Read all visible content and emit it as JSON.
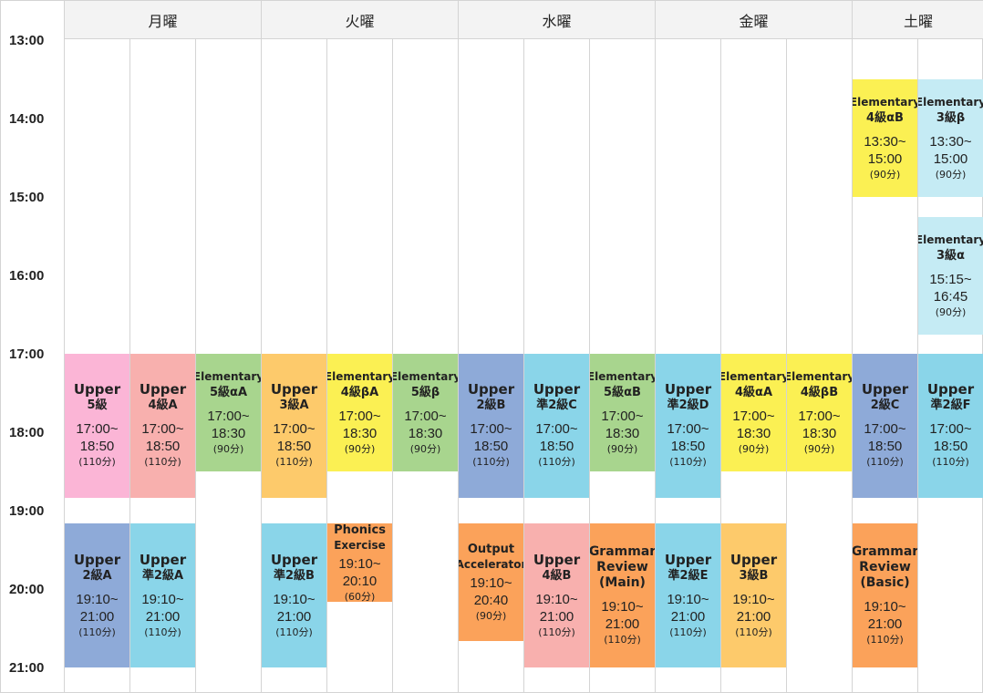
{
  "days": [
    "月曜",
    "火曜",
    "水曜",
    "金曜",
    "土曜"
  ],
  "times": [
    "13:00",
    "14:00",
    "15:00",
    "16:00",
    "17:00",
    "18:00",
    "19:00",
    "20:00",
    "21:00"
  ],
  "colors": {
    "pink": "#fbb5d6",
    "salmon": "#f8b0ae",
    "green": "#a8d58e",
    "orange": "#fdca6b",
    "yellow": "#fbf053",
    "blue": "#8eaad8",
    "cyan": "#8ad5e9",
    "light_cyan": "#c5ebf4",
    "deep_orange": "#fba25a"
  },
  "classes": [
    {
      "col": 0,
      "start": "17:00",
      "end": "18:50",
      "title": "Upper",
      "sub": "5級",
      "time": "17:00~\n18:50",
      "dur": "(110分)",
      "color": "pink"
    },
    {
      "col": 1,
      "start": "17:00",
      "end": "18:50",
      "title": "Upper",
      "sub": "4級A",
      "time": "17:00~\n18:50",
      "dur": "(110分)",
      "color": "salmon"
    },
    {
      "col": 2,
      "start": "17:00",
      "end": "18:30",
      "title": "Elementary",
      "sub": "5級αA",
      "time": "17:00~\n18:30",
      "dur": "(90分)",
      "color": "green"
    },
    {
      "col": 0,
      "start": "19:10",
      "end": "21:00",
      "title": "Upper",
      "sub": "2級A",
      "time": "19:10~\n21:00",
      "dur": "(110分)",
      "color": "blue"
    },
    {
      "col": 1,
      "start": "19:10",
      "end": "21:00",
      "title": "Upper",
      "sub": "準2級A",
      "time": "19:10~\n21:00",
      "dur": "(110分)",
      "color": "cyan"
    },
    {
      "col": 3,
      "start": "17:00",
      "end": "18:50",
      "title": "Upper",
      "sub": "3級A",
      "time": "17:00~\n18:50",
      "dur": "(110分)",
      "color": "orange"
    },
    {
      "col": 4,
      "start": "17:00",
      "end": "18:30",
      "title": "Elementary",
      "sub": "4級βA",
      "time": "17:00~\n18:30",
      "dur": "(90分)",
      "color": "yellow"
    },
    {
      "col": 5,
      "start": "17:00",
      "end": "18:30",
      "title": "Elementary",
      "sub": "5級β",
      "time": "17:00~\n18:30",
      "dur": "(90分)",
      "color": "green"
    },
    {
      "col": 3,
      "start": "19:10",
      "end": "21:00",
      "title": "Upper",
      "sub": "準2級B",
      "time": "19:10~\n21:00",
      "dur": "(110分)",
      "color": "cyan"
    },
    {
      "col": 4,
      "start": "19:10",
      "end": "20:10",
      "title": "Phonics",
      "sub": "Exercise",
      "time": "19:10~\n20:10",
      "dur": "(60分)",
      "color": "deep_orange",
      "compact": true
    },
    {
      "col": 6,
      "start": "17:00",
      "end": "18:50",
      "title": "Upper",
      "sub": "2級B",
      "time": "17:00~\n18:50",
      "dur": "(110分)",
      "color": "blue"
    },
    {
      "col": 7,
      "start": "17:00",
      "end": "18:50",
      "title": "Upper",
      "sub": "準2級C",
      "time": "17:00~\n18:50",
      "dur": "(110分)",
      "color": "cyan"
    },
    {
      "col": 8,
      "start": "17:00",
      "end": "18:30",
      "title": "Elementary",
      "sub": "5級αB",
      "time": "17:00~\n18:30",
      "dur": "(90分)",
      "color": "green"
    },
    {
      "col": 6,
      "start": "19:10",
      "end": "20:40",
      "title": "Output",
      "sub": "Accelerator",
      "time": "19:10~\n20:40",
      "dur": "(90分)",
      "color": "deep_orange",
      "compact": true
    },
    {
      "col": 7,
      "start": "19:10",
      "end": "21:00",
      "title": "Upper",
      "sub": "4級B",
      "time": "19:10~\n21:00",
      "dur": "(110分)",
      "color": "salmon"
    },
    {
      "col": 8,
      "start": "19:10",
      "end": "21:00",
      "title": "Grammar",
      "sub": "Review\n(Main)",
      "time": "19:10~\n21:00",
      "dur": "(110分)",
      "color": "deep_orange"
    },
    {
      "col": 9,
      "start": "17:00",
      "end": "18:50",
      "title": "Upper",
      "sub": "準2級D",
      "time": "17:00~\n18:50",
      "dur": "(110分)",
      "color": "cyan"
    },
    {
      "col": 10,
      "start": "17:00",
      "end": "18:30",
      "title": "Elementary",
      "sub": "4級αA",
      "time": "17:00~\n18:30",
      "dur": "(90分)",
      "color": "yellow"
    },
    {
      "col": 11,
      "start": "17:00",
      "end": "18:30",
      "title": "Elementary",
      "sub": "4級βB",
      "time": "17:00~\n18:30",
      "dur": "(90分)",
      "color": "yellow"
    },
    {
      "col": 9,
      "start": "19:10",
      "end": "21:00",
      "title": "Upper",
      "sub": "準2級E",
      "time": "19:10~\n21:00",
      "dur": "(110分)",
      "color": "cyan"
    },
    {
      "col": 10,
      "start": "19:10",
      "end": "21:00",
      "title": "Upper",
      "sub": "3級B",
      "time": "19:10~\n21:00",
      "dur": "(110分)",
      "color": "orange"
    },
    {
      "col": 12,
      "start": "13:30",
      "end": "15:00",
      "title": "Elementary",
      "sub": "4級αB",
      "time": "13:30~\n15:00",
      "dur": "(90分)",
      "color": "yellow"
    },
    {
      "col": 13,
      "start": "13:30",
      "end": "15:00",
      "title": "Elementary",
      "sub": "3級β",
      "time": "13:30~\n15:00",
      "dur": "(90分)",
      "color": "light_cyan"
    },
    {
      "col": 13,
      "start": "15:15",
      "end": "16:45",
      "title": "Elementary",
      "sub": "3級α",
      "time": "15:15~\n16:45",
      "dur": "(90分)",
      "color": "light_cyan"
    },
    {
      "col": 12,
      "start": "17:00",
      "end": "18:50",
      "title": "Upper",
      "sub": "2級C",
      "time": "17:00~\n18:50",
      "dur": "(110分)",
      "color": "blue"
    },
    {
      "col": 13,
      "start": "17:00",
      "end": "18:50",
      "title": "Upper",
      "sub": "準2級F",
      "time": "17:00~\n18:50",
      "dur": "(110分)",
      "color": "cyan"
    },
    {
      "col": 12,
      "start": "19:10",
      "end": "21:00",
      "title": "Grammar",
      "sub": "Review\n(Basic)",
      "time": "19:10~\n21:00",
      "dur": "(110分)",
      "color": "deep_orange"
    }
  ]
}
